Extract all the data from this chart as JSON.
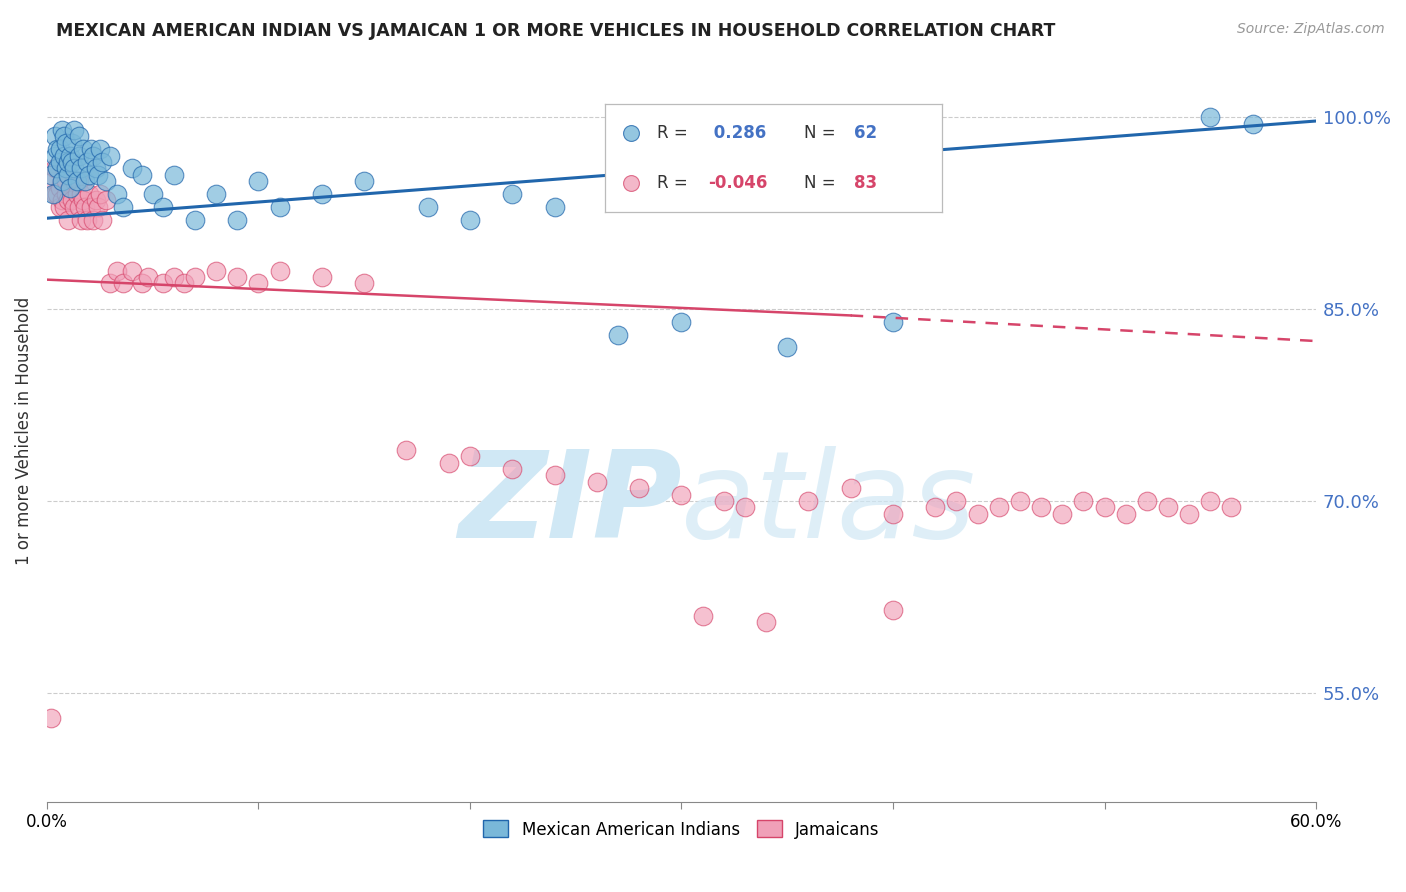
{
  "title": "MEXICAN AMERICAN INDIAN VS JAMAICAN 1 OR MORE VEHICLES IN HOUSEHOLD CORRELATION CHART",
  "source": "Source: ZipAtlas.com",
  "ylabel": "1 or more Vehicles in Household",
  "x_min": 0.0,
  "x_max": 0.6,
  "y_min": 0.465,
  "y_max": 1.045,
  "x_ticks": [
    0.0,
    0.1,
    0.2,
    0.3,
    0.4,
    0.5,
    0.6
  ],
  "x_tick_labels": [
    "0.0%",
    "",
    "",
    "",
    "",
    "",
    "60.0%"
  ],
  "y_ticks": [
    0.55,
    0.7,
    0.85,
    1.0
  ],
  "y_tick_labels": [
    "55.0%",
    "70.0%",
    "85.0%",
    "100.0%"
  ],
  "blue_label": "Mexican American Indians",
  "pink_label": "Jamaicans",
  "R_blue": "0.286",
  "N_blue": "62",
  "R_pink": "-0.046",
  "N_pink": "83",
  "blue_color": "#7ab8d9",
  "pink_color": "#f0a0b8",
  "blue_edge_color": "#2166ac",
  "pink_edge_color": "#d6456a",
  "blue_line_color": "#2166ac",
  "pink_line_color": "#d6456a",
  "watermark_color": "#d0e8f5",
  "blue_trend": [
    0.0,
    0.6,
    0.921,
    0.997
  ],
  "pink_trend_solid": [
    0.0,
    0.38,
    0.873,
    0.845
  ],
  "pink_trend_dashed": [
    0.38,
    0.6,
    0.845,
    0.825
  ],
  "blue_x": [
    0.002,
    0.003,
    0.004,
    0.004,
    0.005,
    0.005,
    0.006,
    0.006,
    0.007,
    0.007,
    0.008,
    0.008,
    0.009,
    0.009,
    0.01,
    0.01,
    0.011,
    0.011,
    0.012,
    0.012,
    0.013,
    0.013,
    0.014,
    0.015,
    0.015,
    0.016,
    0.017,
    0.018,
    0.019,
    0.02,
    0.021,
    0.022,
    0.023,
    0.024,
    0.025,
    0.026,
    0.028,
    0.03,
    0.033,
    0.036,
    0.04,
    0.045,
    0.05,
    0.055,
    0.06,
    0.07,
    0.08,
    0.09,
    0.1,
    0.11,
    0.13,
    0.15,
    0.18,
    0.2,
    0.22,
    0.24,
    0.27,
    0.3,
    0.35,
    0.4,
    0.55,
    0.57
  ],
  "blue_y": [
    0.955,
    0.94,
    0.97,
    0.985,
    0.96,
    0.975,
    0.965,
    0.975,
    0.99,
    0.95,
    0.97,
    0.985,
    0.96,
    0.98,
    0.955,
    0.965,
    0.97,
    0.945,
    0.965,
    0.98,
    0.96,
    0.99,
    0.95,
    0.97,
    0.985,
    0.96,
    0.975,
    0.95,
    0.965,
    0.955,
    0.975,
    0.97,
    0.96,
    0.955,
    0.975,
    0.965,
    0.95,
    0.97,
    0.94,
    0.93,
    0.96,
    0.955,
    0.94,
    0.93,
    0.955,
    0.92,
    0.94,
    0.92,
    0.95,
    0.93,
    0.94,
    0.95,
    0.93,
    0.92,
    0.94,
    0.93,
    0.83,
    0.84,
    0.82,
    0.84,
    1.0,
    0.995
  ],
  "pink_x": [
    0.002,
    0.003,
    0.004,
    0.004,
    0.005,
    0.005,
    0.006,
    0.006,
    0.007,
    0.007,
    0.008,
    0.008,
    0.009,
    0.009,
    0.01,
    0.01,
    0.011,
    0.012,
    0.013,
    0.013,
    0.014,
    0.015,
    0.015,
    0.016,
    0.016,
    0.017,
    0.018,
    0.019,
    0.02,
    0.021,
    0.022,
    0.023,
    0.024,
    0.025,
    0.026,
    0.028,
    0.03,
    0.033,
    0.036,
    0.04,
    0.045,
    0.048,
    0.055,
    0.06,
    0.065,
    0.07,
    0.08,
    0.09,
    0.1,
    0.11,
    0.13,
    0.15,
    0.17,
    0.19,
    0.2,
    0.22,
    0.24,
    0.26,
    0.28,
    0.3,
    0.32,
    0.33,
    0.36,
    0.38,
    0.4,
    0.42,
    0.43,
    0.44,
    0.45,
    0.46,
    0.47,
    0.48,
    0.49,
    0.5,
    0.51,
    0.52,
    0.53,
    0.54,
    0.55,
    0.56,
    0.4,
    0.31,
    0.34
  ],
  "pink_y": [
    0.53,
    0.95,
    0.94,
    0.96,
    0.94,
    0.96,
    0.93,
    0.945,
    0.935,
    0.95,
    0.96,
    0.93,
    0.95,
    0.94,
    0.935,
    0.92,
    0.945,
    0.935,
    0.95,
    0.93,
    0.94,
    0.93,
    0.95,
    0.94,
    0.92,
    0.935,
    0.93,
    0.92,
    0.94,
    0.93,
    0.92,
    0.935,
    0.93,
    0.94,
    0.92,
    0.935,
    0.87,
    0.88,
    0.87,
    0.88,
    0.87,
    0.875,
    0.87,
    0.875,
    0.87,
    0.875,
    0.88,
    0.875,
    0.87,
    0.88,
    0.875,
    0.87,
    0.74,
    0.73,
    0.735,
    0.725,
    0.72,
    0.715,
    0.71,
    0.705,
    0.7,
    0.695,
    0.7,
    0.71,
    0.69,
    0.695,
    0.7,
    0.69,
    0.695,
    0.7,
    0.695,
    0.69,
    0.7,
    0.695,
    0.69,
    0.7,
    0.695,
    0.69,
    0.7,
    0.695,
    0.615,
    0.61,
    0.605
  ]
}
